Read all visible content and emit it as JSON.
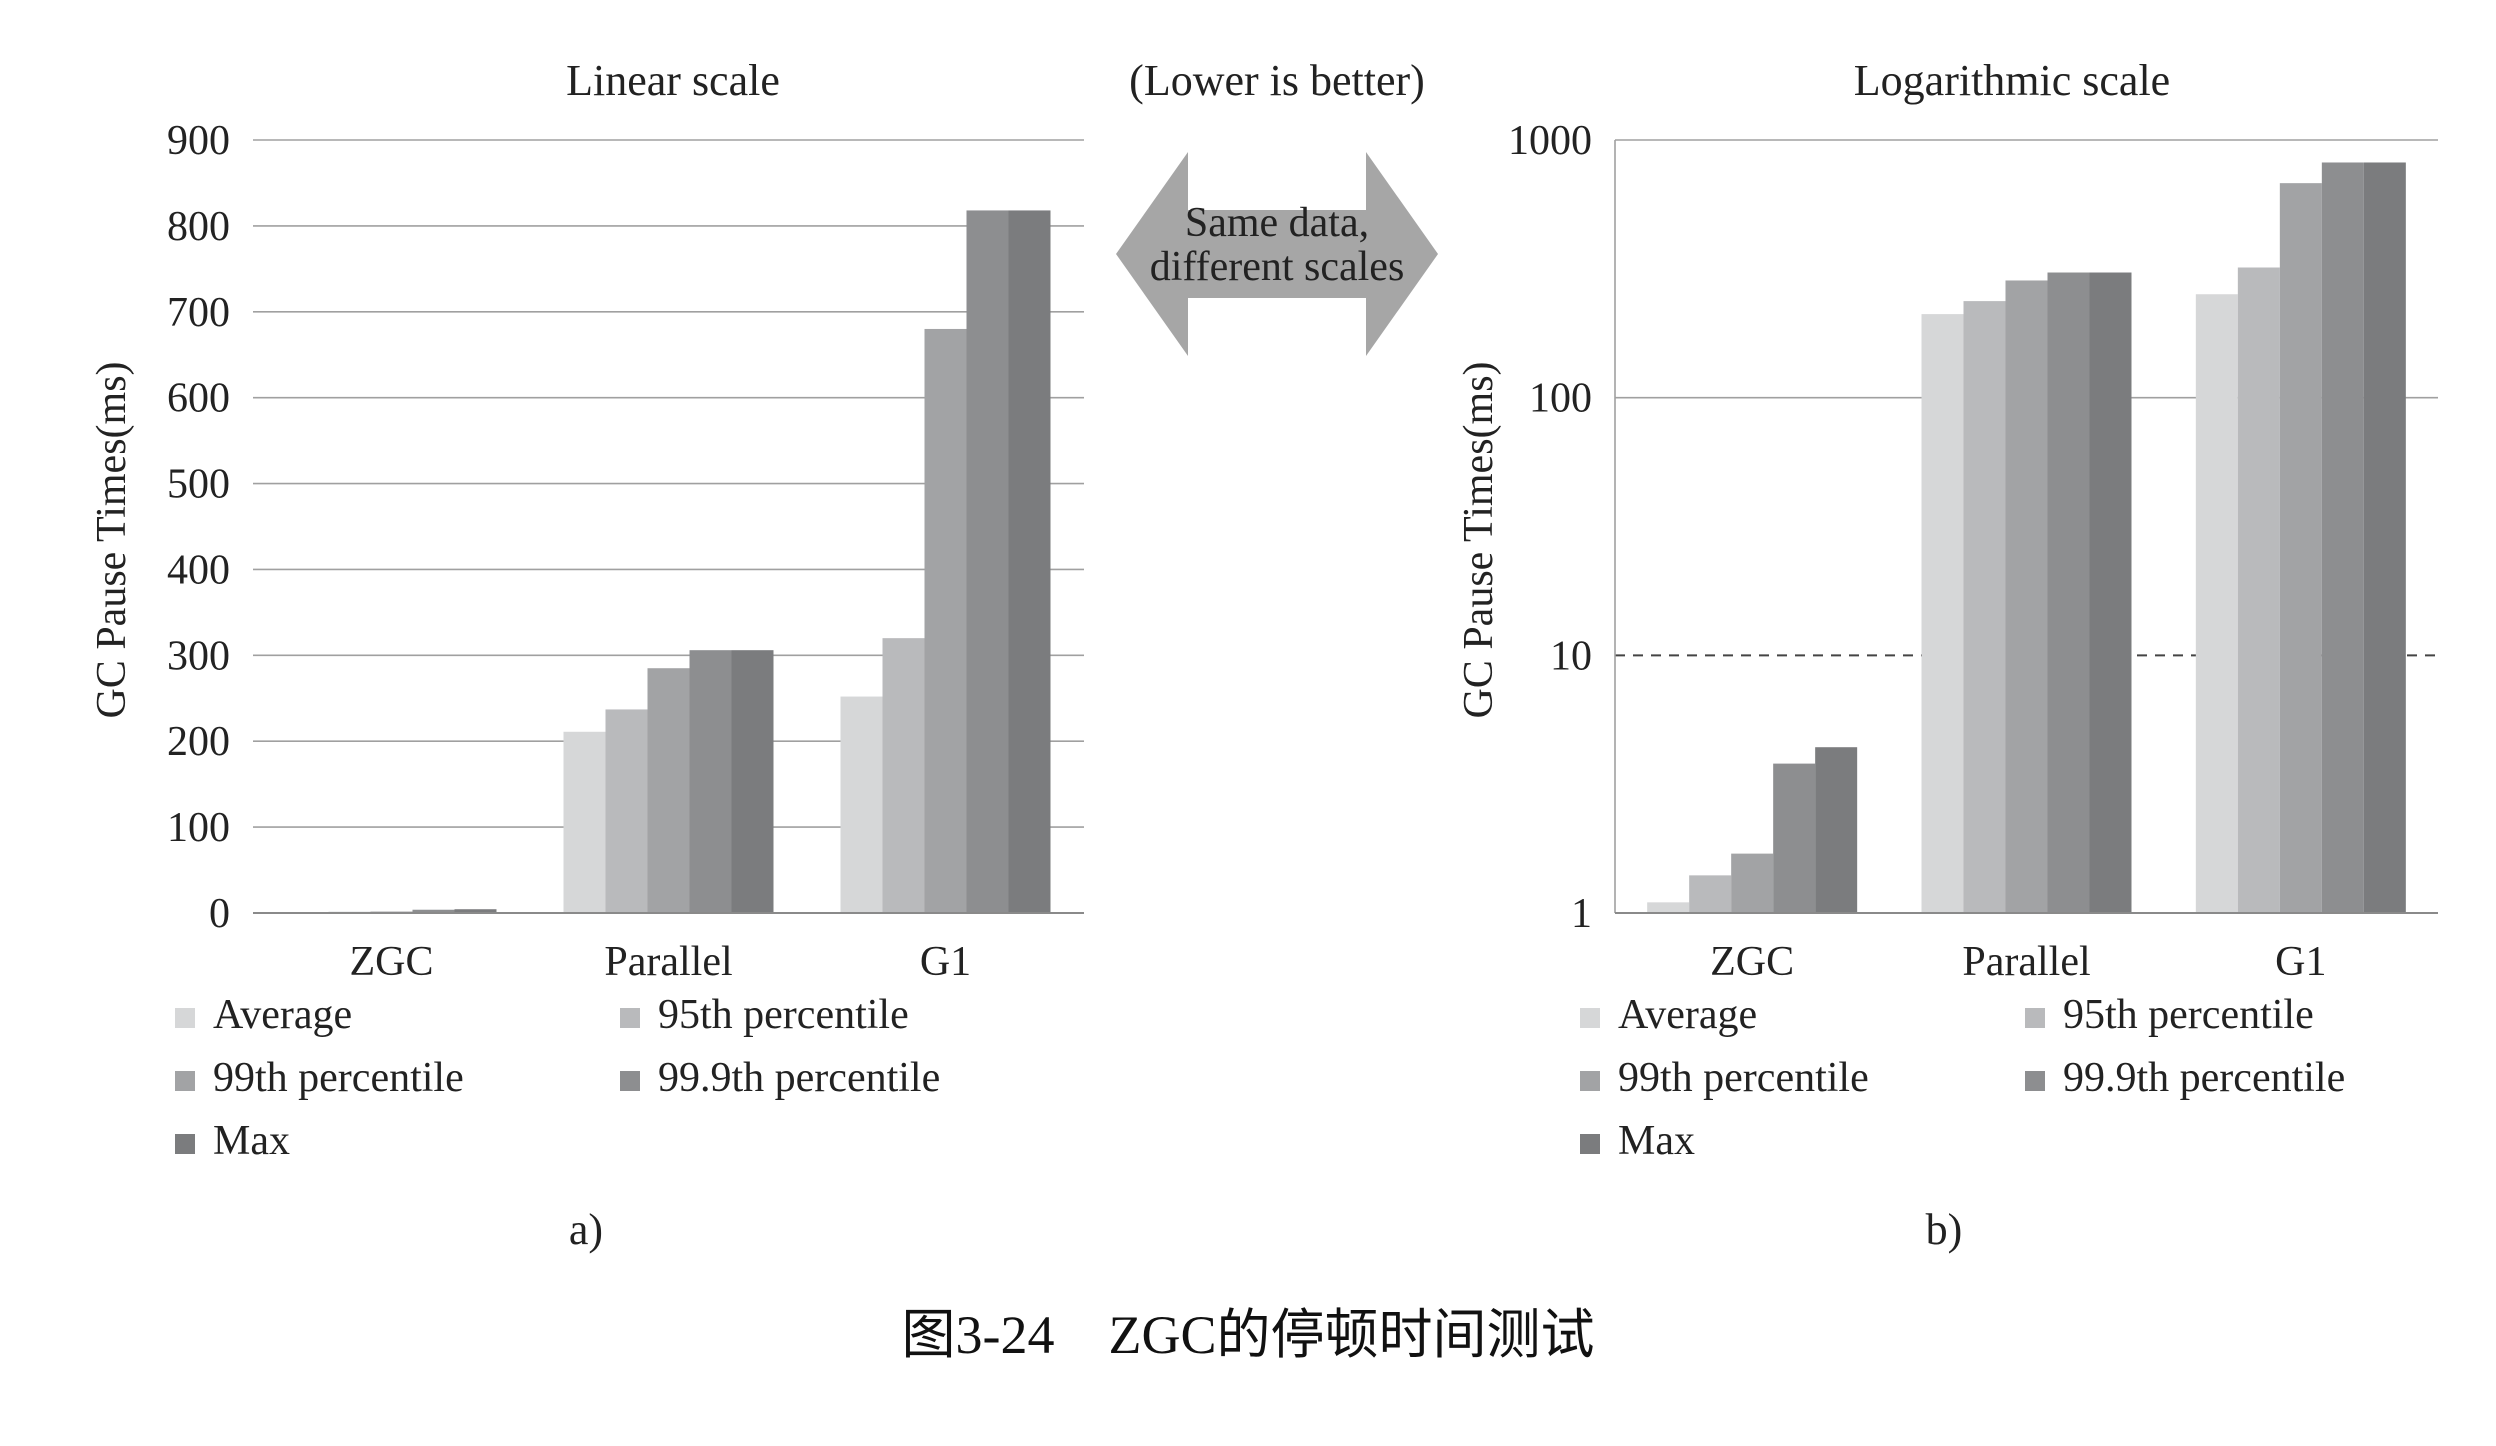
{
  "center_note": {
    "lower_is_better": "(Lower is better)",
    "arrow_line1": "Same data,",
    "arrow_line2": "different scales"
  },
  "caption": "图3-24    ZGC的停顿时间测试",
  "colors": {
    "series": [
      "#d6d7d8",
      "#b9babc",
      "#a2a3a5",
      "#8d8e90",
      "#7b7c7e"
    ],
    "gridline": "#a0a0a0",
    "arrow": "#a6a6a6"
  },
  "chart_data": [
    {
      "type": "bar",
      "title": "Linear scale",
      "sublabel": "a)",
      "ylabel": "GC Pause Times(ms)",
      "scale": "linear",
      "ylim": [
        0,
        900
      ],
      "yticks": [
        0,
        100,
        200,
        300,
        400,
        500,
        600,
        700,
        800,
        900
      ],
      "ytick_labels": [
        "0",
        "100",
        "200",
        "300",
        "400",
        "500",
        "600",
        "700",
        "800",
        "900"
      ],
      "grid": true,
      "legend_position": "bottom",
      "categories": [
        "ZGC",
        "Parallel",
        "G1"
      ],
      "series": [
        {
          "name": "Average",
          "values": [
            1.1,
            211,
            252
          ]
        },
        {
          "name": "95th percentile",
          "values": [
            1.4,
            237,
            320
          ]
        },
        {
          "name": "99th percentile",
          "values": [
            1.7,
            285,
            680
          ]
        },
        {
          "name": "99.9th percentile",
          "values": [
            3.8,
            306,
            818
          ]
        },
        {
          "name": "Max",
          "values": [
            4.4,
            306,
            818
          ]
        }
      ]
    },
    {
      "type": "bar",
      "title": "Logarithmic scale",
      "sublabel": "b)",
      "ylabel": "GC Pause Times(ms)",
      "scale": "log",
      "ylim": [
        1,
        1000
      ],
      "yticks": [
        1,
        10,
        100,
        1000
      ],
      "ytick_labels": [
        "1",
        "10",
        "100",
        "1000"
      ],
      "grid": true,
      "dashed_reference": 10,
      "legend_position": "bottom",
      "categories": [
        "ZGC",
        "Parallel",
        "G1"
      ],
      "series": [
        {
          "name": "Average",
          "values": [
            1.1,
            211,
            252
          ]
        },
        {
          "name": "95th percentile",
          "values": [
            1.4,
            237,
            320
          ]
        },
        {
          "name": "99th percentile",
          "values": [
            1.7,
            285,
            680
          ]
        },
        {
          "name": "99.9th percentile",
          "values": [
            3.8,
            306,
            818
          ]
        },
        {
          "name": "Max",
          "values": [
            4.4,
            306,
            818
          ]
        }
      ]
    }
  ]
}
